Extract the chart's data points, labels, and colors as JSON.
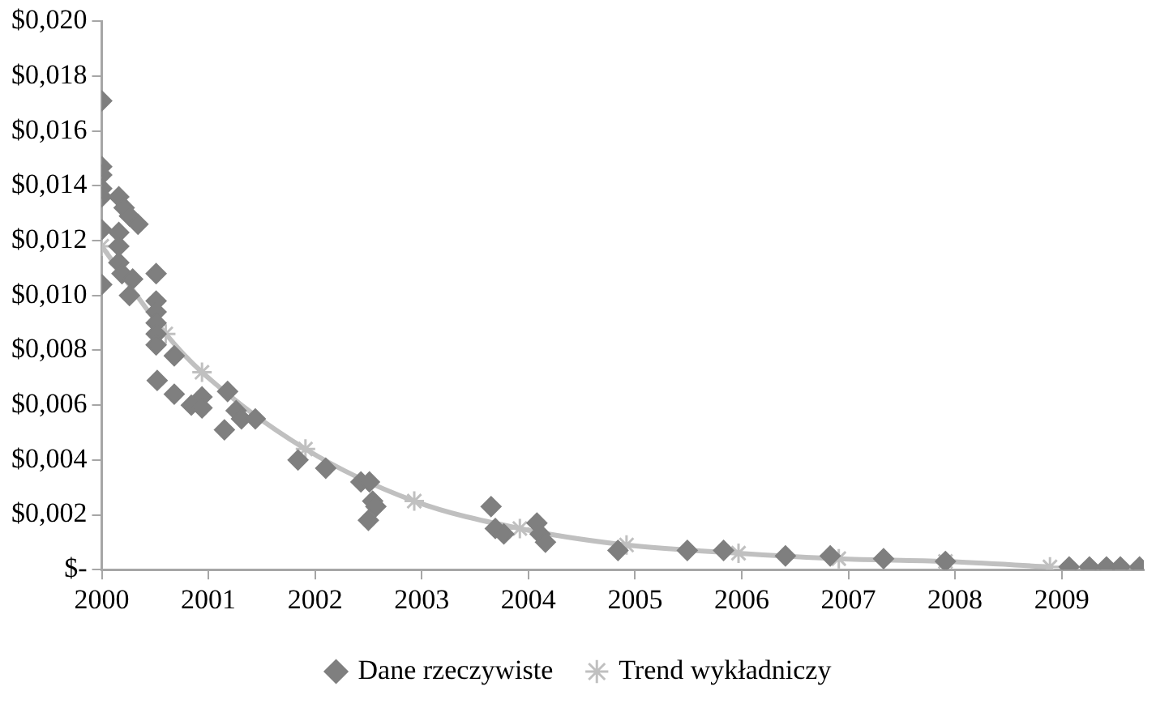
{
  "chart_data": {
    "type": "scatter",
    "legend": "bottom",
    "grid": false,
    "xlim": [
      2000,
      2009.77
    ],
    "xticks": [
      2000,
      2001,
      2002,
      2003,
      2004,
      2005,
      2006,
      2007,
      2008,
      2009
    ],
    "ylim": [
      0,
      0.02
    ],
    "yticks": [
      {
        "value": 0,
        "label": "$-"
      },
      {
        "value": 0.002,
        "label": "$0,002"
      },
      {
        "value": 0.004,
        "label": "$0,004"
      },
      {
        "value": 0.006,
        "label": "$0,006"
      },
      {
        "value": 0.008,
        "label": "$0,008"
      },
      {
        "value": 0.01,
        "label": "$0,010"
      },
      {
        "value": 0.012,
        "label": "$0,012"
      },
      {
        "value": 0.014,
        "label": "$0,014"
      },
      {
        "value": 0.016,
        "label": "$0,016"
      },
      {
        "value": 0.018,
        "label": "$0,018"
      },
      {
        "value": 0.02,
        "label": "$0,020"
      }
    ],
    "series": [
      {
        "name": "Dane rzeczywiste",
        "type": "scatter",
        "marker": "diamond",
        "color": "#7f7f7f",
        "x": [
          2000.0,
          2000.0,
          2000.0,
          2000.0,
          2000.0,
          2000.0,
          2000.0,
          2000.16,
          2000.21,
          2000.26,
          2000.34,
          2000.16,
          2000.16,
          2000.16,
          2000.19,
          2000.29,
          2000.26,
          2000.51,
          2000.51,
          2000.51,
          2000.51,
          2000.51,
          2000.51,
          2000.52,
          2000.68,
          2000.68,
          2000.84,
          2000.94,
          2000.94,
          2001.18,
          2001.15,
          2001.26,
          2001.31,
          2001.44,
          2001.84,
          2002.1,
          2002.43,
          2002.51,
          2002.54,
          2002.57,
          2002.5,
          2003.65,
          2003.69,
          2003.77,
          2004.08,
          2004.11,
          2004.16,
          2004.84,
          2005.49,
          2005.83,
          2006.41,
          2006.83,
          2007.33,
          2007.91,
          2009.07,
          2009.26,
          2009.42,
          2009.55,
          2009.73
        ],
        "values": [
          0.0171,
          0.0147,
          0.0144,
          0.0139,
          0.0136,
          0.0124,
          0.0104,
          0.0136,
          0.0132,
          0.0129,
          0.0126,
          0.0123,
          0.0118,
          0.0112,
          0.0108,
          0.0106,
          0.01,
          0.0108,
          0.0098,
          0.0094,
          0.009,
          0.0086,
          0.0082,
          0.0069,
          0.0078,
          0.0064,
          0.006,
          0.0063,
          0.0059,
          0.0065,
          0.0051,
          0.0058,
          0.0055,
          0.0055,
          0.004,
          0.0037,
          0.0032,
          0.0032,
          0.0025,
          0.0023,
          0.0018,
          0.0023,
          0.0015,
          0.0013,
          0.0017,
          0.0013,
          0.001,
          0.0007,
          0.0007,
          0.0007,
          0.0005,
          0.0005,
          0.0004,
          0.0003,
          0.0001,
          0.0001,
          0.0001,
          0.0001,
          0.0001
        ]
      },
      {
        "name": "Trend wykładniczy",
        "type": "line",
        "marker": "cross",
        "color": "#c0c0c0",
        "x": [
          2000.0,
          2000.6,
          2000.94,
          2001.91,
          2002.93,
          2003.92,
          2004.92,
          2005.97,
          2006.91,
          2007.91,
          2008.89
        ],
        "values": [
          0.0118,
          0.0086,
          0.0072,
          0.0044,
          0.0025,
          0.0015,
          0.0009,
          0.0006,
          0.0004,
          0.0003,
          0.0001
        ]
      }
    ]
  }
}
